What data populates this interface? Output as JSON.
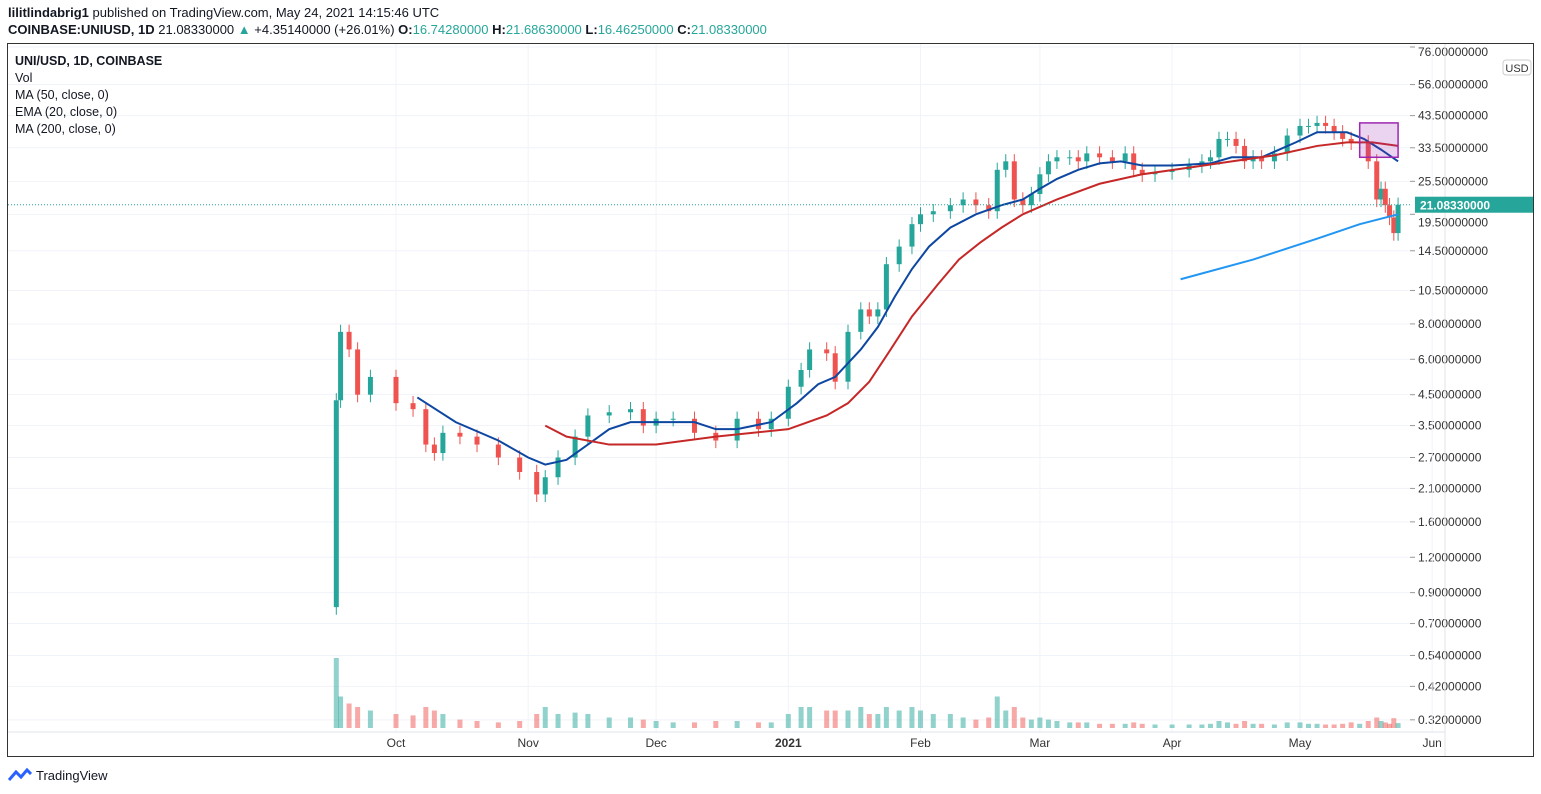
{
  "header": {
    "publisher": "lilitlindabrig1",
    "published_text": "published on TradingView.com, May 24, 2021 14:15:46 UTC",
    "symbol": "COINBASE:UNIUSD, 1D",
    "last": "21.08330000",
    "change": "+4.35140000 (+26.01%)",
    "o_label": "O:",
    "o": "16.74280000",
    "h_label": "H:",
    "h": "21.68630000",
    "l_label": "L:",
    "l": "16.46250000",
    "c_label": "C:",
    "c": "21.08330000"
  },
  "legend": [
    "UNI/USD, 1D, COINBASE",
    "Vol",
    "MA (50, close, 0)",
    "EMA (20, close, 0)",
    "MA (200, close, 0)"
  ],
  "footer": {
    "brand": "TradingView"
  },
  "colors": {
    "up": "#26a69a",
    "down": "#ef5350",
    "ema20": "#0d47a1",
    "ma50": "#c62828",
    "ma200": "#2196f3",
    "annotation": "#9c27b0"
  },
  "chart_data": {
    "type": "candlestick",
    "yscale": "log",
    "currency": "USD",
    "ylim": [
      0.32,
      76
    ],
    "y_ticks": [
      "76.00000000",
      "56.00000000",
      "43.50000000",
      "33.50000000",
      "25.50000000",
      "19.50000000",
      "14.50000000",
      "10.50000000",
      "8.00000000",
      "6.00000000",
      "4.50000000",
      "3.50000000",
      "2.70000000",
      "2.10000000",
      "1.60000000",
      "1.20000000",
      "0.90000000",
      "0.70000000",
      "0.54000000",
      "0.42000000",
      "0.32000000"
    ],
    "x_ticks": [
      [
        "2020-10-01",
        "Oct"
      ],
      [
        "2020-11-01",
        "Nov"
      ],
      [
        "2020-12-01",
        "Dec"
      ],
      [
        "2021-01-01",
        "2021"
      ],
      [
        "2021-02-01",
        "Feb"
      ],
      [
        "2021-03-01",
        "Mar"
      ],
      [
        "2021-04-01",
        "Apr"
      ],
      [
        "2021-05-01",
        "May"
      ],
      [
        "2021-06-01",
        "Jun"
      ]
    ],
    "last_price": "21.08330000",
    "first_open": 0.8,
    "candles": [
      [
        "2020-09-17",
        4.3,
        1.0
      ],
      [
        "2020-09-18",
        7.5,
        0.45
      ],
      [
        "2020-09-20",
        6.5,
        0.35
      ],
      [
        "2020-09-22",
        4.5,
        0.3
      ],
      [
        "2020-09-25",
        5.2,
        0.25
      ],
      [
        "2020-10-01",
        4.2,
        0.2
      ],
      [
        "2020-10-05",
        4.0,
        0.18
      ],
      [
        "2020-10-08",
        3.0,
        0.3
      ],
      [
        "2020-10-10",
        2.8,
        0.25
      ],
      [
        "2020-10-12",
        3.3,
        0.2
      ],
      [
        "2020-10-16",
        3.2,
        0.12
      ],
      [
        "2020-10-20",
        3.0,
        0.1
      ],
      [
        "2020-10-25",
        2.7,
        0.08
      ],
      [
        "2020-10-30",
        2.4,
        0.1
      ],
      [
        "2020-11-03",
        2.0,
        0.2
      ],
      [
        "2020-11-05",
        2.3,
        0.3
      ],
      [
        "2020-11-08",
        2.7,
        0.2
      ],
      [
        "2020-11-12",
        3.2,
        0.22
      ],
      [
        "2020-11-15",
        3.8,
        0.2
      ],
      [
        "2020-11-20",
        3.9,
        0.15
      ],
      [
        "2020-11-25",
        4.0,
        0.15
      ],
      [
        "2020-11-28",
        3.5,
        0.12
      ],
      [
        "2020-12-01",
        3.7,
        0.1
      ],
      [
        "2020-12-05",
        3.7,
        0.08
      ],
      [
        "2020-12-10",
        3.3,
        0.08
      ],
      [
        "2020-12-15",
        3.1,
        0.1
      ],
      [
        "2020-12-20",
        3.7,
        0.1
      ],
      [
        "2020-12-25",
        3.4,
        0.08
      ],
      [
        "2020-12-28",
        3.7,
        0.08
      ],
      [
        "2021-01-01",
        4.8,
        0.2
      ],
      [
        "2021-01-04",
        5.5,
        0.3
      ],
      [
        "2021-01-06",
        6.5,
        0.3
      ],
      [
        "2021-01-10",
        6.3,
        0.25
      ],
      [
        "2021-01-12",
        5.0,
        0.25
      ],
      [
        "2021-01-15",
        7.5,
        0.25
      ],
      [
        "2021-01-18",
        9.0,
        0.3
      ],
      [
        "2021-01-20",
        8.5,
        0.2
      ],
      [
        "2021-01-22",
        9.0,
        0.2
      ],
      [
        "2021-01-24",
        13.0,
        0.3
      ],
      [
        "2021-01-27",
        15.0,
        0.25
      ],
      [
        "2021-01-30",
        18.0,
        0.3
      ],
      [
        "2021-02-01",
        19.5,
        0.25
      ],
      [
        "2021-02-04",
        20.0,
        0.2
      ],
      [
        "2021-02-08",
        21.0,
        0.2
      ],
      [
        "2021-02-11",
        22.0,
        0.15
      ],
      [
        "2021-02-14",
        21.0,
        0.12
      ],
      [
        "2021-02-17",
        20.0,
        0.15
      ],
      [
        "2021-02-19",
        28.0,
        0.45
      ],
      [
        "2021-02-21",
        30.0,
        0.25
      ],
      [
        "2021-02-23",
        22.0,
        0.3
      ],
      [
        "2021-02-25",
        21.0,
        0.15
      ],
      [
        "2021-02-27",
        23.0,
        0.12
      ],
      [
        "2021-03-01",
        27.0,
        0.15
      ],
      [
        "2021-03-03",
        30.0,
        0.12
      ],
      [
        "2021-03-05",
        31.0,
        0.1
      ],
      [
        "2021-03-08",
        31.0,
        0.08
      ],
      [
        "2021-03-10",
        30.0,
        0.08
      ],
      [
        "2021-03-12",
        32.0,
        0.08
      ],
      [
        "2021-03-15",
        31.0,
        0.06
      ],
      [
        "2021-03-18",
        30.0,
        0.06
      ],
      [
        "2021-03-21",
        32.0,
        0.06
      ],
      [
        "2021-03-23",
        28.0,
        0.08
      ],
      [
        "2021-03-25",
        27.0,
        0.06
      ],
      [
        "2021-03-28",
        27.5,
        0.05
      ],
      [
        "2021-04-01",
        28.0,
        0.05
      ],
      [
        "2021-04-05",
        29.0,
        0.05
      ],
      [
        "2021-04-08",
        30.0,
        0.05
      ],
      [
        "2021-04-10",
        31.0,
        0.06
      ],
      [
        "2021-04-12",
        36.0,
        0.1
      ],
      [
        "2021-04-14",
        36.0,
        0.08
      ],
      [
        "2021-04-16",
        34.0,
        0.06
      ],
      [
        "2021-04-18",
        30.0,
        0.1
      ],
      [
        "2021-04-20",
        31.0,
        0.06
      ],
      [
        "2021-04-22",
        30.0,
        0.06
      ],
      [
        "2021-04-25",
        32.0,
        0.05
      ],
      [
        "2021-04-28",
        37.0,
        0.08
      ],
      [
        "2021-05-01",
        40.0,
        0.08
      ],
      [
        "2021-05-03",
        40.0,
        0.06
      ],
      [
        "2021-05-05",
        41.0,
        0.06
      ],
      [
        "2021-05-07",
        40.0,
        0.05
      ],
      [
        "2021-05-09",
        38.0,
        0.05
      ],
      [
        "2021-05-11",
        36.0,
        0.06
      ],
      [
        "2021-05-13",
        35.0,
        0.08
      ],
      [
        "2021-05-15",
        35.0,
        0.06
      ],
      [
        "2021-05-17",
        30.0,
        0.1
      ],
      [
        "2021-05-19",
        22.0,
        0.15
      ],
      [
        "2021-05-20",
        24.0,
        0.1
      ],
      [
        "2021-05-21",
        21.0,
        0.08
      ],
      [
        "2021-05-22",
        19.0,
        0.06
      ],
      [
        "2021-05-23",
        16.74,
        0.14
      ],
      [
        "2021-05-24",
        21.0833,
        0.07
      ]
    ],
    "series": [
      {
        "name": "EMA (20, close, 0)",
        "color": "#0d47a1",
        "points": [
          [
            "2020-10-06",
            4.4
          ],
          [
            "2020-10-15",
            3.6
          ],
          [
            "2020-10-25",
            3.1
          ],
          [
            "2020-11-01",
            2.7
          ],
          [
            "2020-11-05",
            2.55
          ],
          [
            "2020-11-10",
            2.65
          ],
          [
            "2020-11-15",
            3.0
          ],
          [
            "2020-11-20",
            3.4
          ],
          [
            "2020-11-25",
            3.6
          ],
          [
            "2020-12-01",
            3.6
          ],
          [
            "2020-12-10",
            3.6
          ],
          [
            "2020-12-15",
            3.4
          ],
          [
            "2020-12-20",
            3.4
          ],
          [
            "2020-12-28",
            3.6
          ],
          [
            "2021-01-03",
            4.2
          ],
          [
            "2021-01-08",
            4.9
          ],
          [
            "2021-01-12",
            5.2
          ],
          [
            "2021-01-18",
            6.5
          ],
          [
            "2021-01-22",
            7.8
          ],
          [
            "2021-01-26",
            10
          ],
          [
            "2021-01-30",
            12.5
          ],
          [
            "2021-02-03",
            15
          ],
          [
            "2021-02-08",
            17.5
          ],
          [
            "2021-02-14",
            19.5
          ],
          [
            "2021-02-20",
            21
          ],
          [
            "2021-02-25",
            22
          ],
          [
            "2021-03-01",
            24
          ],
          [
            "2021-03-05",
            26
          ],
          [
            "2021-03-10",
            28
          ],
          [
            "2021-03-15",
            29.5
          ],
          [
            "2021-03-20",
            30
          ],
          [
            "2021-03-25",
            29
          ],
          [
            "2021-04-01",
            29
          ],
          [
            "2021-04-10",
            29.5
          ],
          [
            "2021-04-15",
            31
          ],
          [
            "2021-04-22",
            31
          ],
          [
            "2021-04-30",
            35
          ],
          [
            "2021-05-05",
            38
          ],
          [
            "2021-05-12",
            38
          ],
          [
            "2021-05-16",
            36
          ],
          [
            "2021-05-20",
            33
          ],
          [
            "2021-05-24",
            30
          ]
        ]
      },
      {
        "name": "MA (50, close, 0)",
        "color": "#c62828",
        "points": [
          [
            "2020-11-05",
            3.5
          ],
          [
            "2020-11-10",
            3.2
          ],
          [
            "2020-11-20",
            3.0
          ],
          [
            "2020-12-01",
            3.0
          ],
          [
            "2020-12-15",
            3.2
          ],
          [
            "2021-01-01",
            3.4
          ],
          [
            "2021-01-10",
            3.8
          ],
          [
            "2021-01-15",
            4.2
          ],
          [
            "2021-01-20",
            5
          ],
          [
            "2021-01-25",
            6.5
          ],
          [
            "2021-01-30",
            8.5
          ],
          [
            "2021-02-05",
            11
          ],
          [
            "2021-02-10",
            13.5
          ],
          [
            "2021-02-15",
            15.5
          ],
          [
            "2021-02-20",
            17.5
          ],
          [
            "2021-02-25",
            19.5
          ],
          [
            "2021-03-05",
            22
          ],
          [
            "2021-03-15",
            25
          ],
          [
            "2021-03-25",
            27
          ],
          [
            "2021-04-05",
            28.5
          ],
          [
            "2021-04-15",
            30
          ],
          [
            "2021-04-25",
            31.5
          ],
          [
            "2021-05-05",
            34
          ],
          [
            "2021-05-12",
            35
          ],
          [
            "2021-05-18",
            35
          ],
          [
            "2021-05-24",
            34
          ]
        ]
      },
      {
        "name": "MA (200, close, 0)",
        "color": "#2196f3",
        "points": [
          [
            "2021-04-03",
            11.5
          ],
          [
            "2021-04-20",
            13.5
          ],
          [
            "2021-05-05",
            16
          ],
          [
            "2021-05-15",
            18
          ],
          [
            "2021-05-24",
            19.5
          ]
        ]
      }
    ],
    "annotation": {
      "type": "rectangle",
      "from": [
        "2021-05-15",
        41
      ],
      "to": [
        "2021-05-24",
        31
      ]
    },
    "grid": true
  }
}
